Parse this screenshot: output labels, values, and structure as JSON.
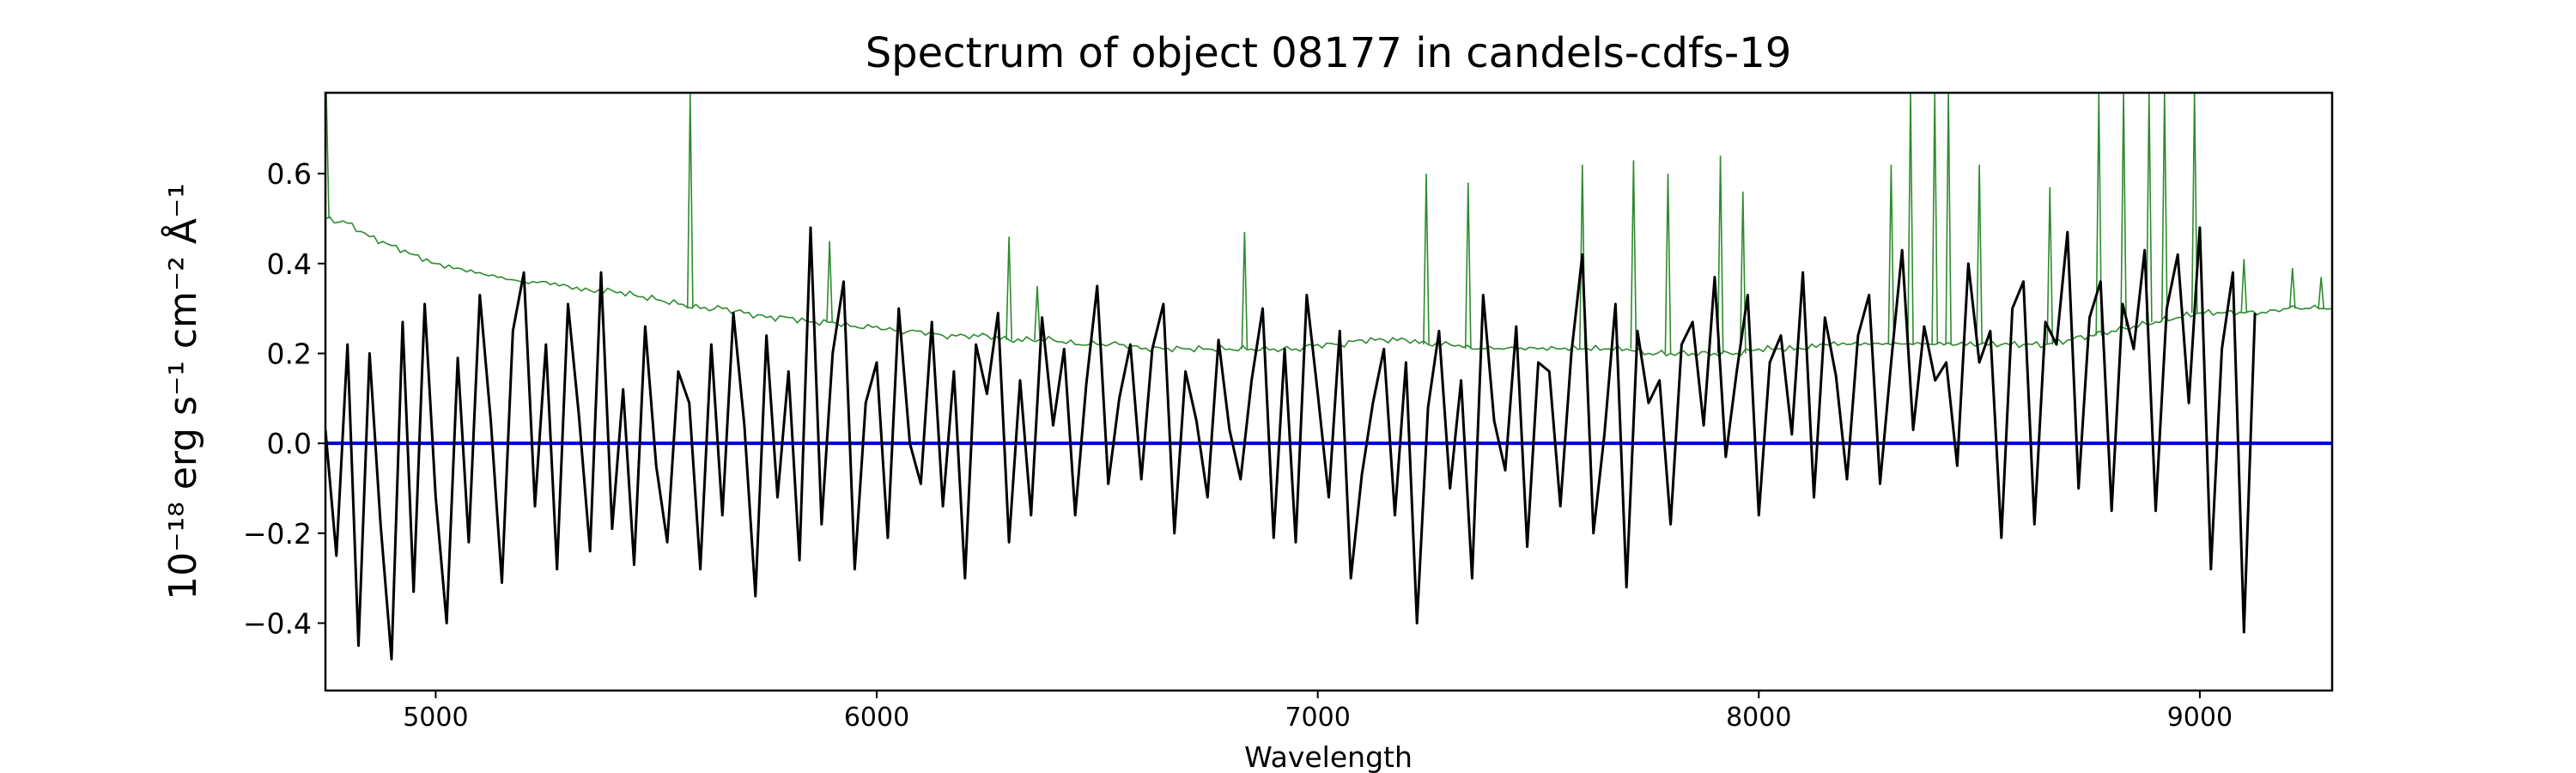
{
  "chart_data": {
    "type": "line",
    "title": "Spectrum of object 08177 in candels-cdfs-19",
    "xlabel": "Wavelength",
    "ylabel": "10⁻¹⁸ erg s⁻¹ cm⁻² Å⁻¹",
    "xlim": [
      4750,
      9300
    ],
    "ylim": [
      -0.55,
      0.78
    ],
    "x_ticks": [
      5000,
      6000,
      7000,
      8000,
      9000
    ],
    "x_tick_labels": [
      "5000",
      "6000",
      "7000",
      "8000",
      "9000"
    ],
    "y_ticks": [
      -0.4,
      -0.2,
      0.0,
      0.2,
      0.4,
      0.6
    ],
    "y_tick_labels": [
      "−0.4",
      "−0.2",
      "0.0",
      "0.2",
      "0.4",
      "0.6"
    ],
    "grid": false,
    "series": [
      {
        "role": "sky-noise",
        "color": "#2e8b2e",
        "start": 4750,
        "step": 50,
        "values": [
          0.5,
          0.49,
          0.46,
          0.44,
          0.42,
          0.4,
          0.39,
          0.38,
          0.37,
          0.36,
          0.36,
          0.35,
          0.34,
          0.34,
          0.33,
          0.32,
          0.31,
          0.3,
          0.3,
          0.29,
          0.28,
          0.28,
          0.27,
          0.27,
          0.26,
          0.26,
          0.25,
          0.25,
          0.24,
          0.24,
          0.24,
          0.23,
          0.23,
          0.23,
          0.22,
          0.22,
          0.22,
          0.21,
          0.21,
          0.21,
          0.21,
          0.21,
          0.21,
          0.21,
          0.21,
          0.22,
          0.22,
          0.23,
          0.23,
          0.23,
          0.22,
          0.22,
          0.21,
          0.21,
          0.21,
          0.21,
          0.21,
          0.21,
          0.21,
          0.21,
          0.2,
          0.2,
          0.2,
          0.2,
          0.2,
          0.21,
          0.21,
          0.21,
          0.22,
          0.22,
          0.22,
          0.22,
          0.22,
          0.22,
          0.22,
          0.22,
          0.22,
          0.22,
          0.22,
          0.23,
          0.24,
          0.25,
          0.26,
          0.27,
          0.28,
          0.29,
          0.29,
          0.29,
          0.29,
          0.3,
          0.3,
          0.3
        ],
        "peaks": [
          [
            4752,
            0.78
          ],
          [
            5577,
            0.78
          ],
          [
            5893,
            0.45
          ],
          [
            6300,
            0.46
          ],
          [
            6364,
            0.35
          ],
          [
            6834,
            0.47
          ],
          [
            7246,
            0.6
          ],
          [
            7341,
            0.58
          ],
          [
            7600,
            0.62
          ],
          [
            7716,
            0.63
          ],
          [
            7794,
            0.6
          ],
          [
            7913,
            0.64
          ],
          [
            7964,
            0.56
          ],
          [
            8300,
            0.62
          ],
          [
            8344,
            0.78
          ],
          [
            8399,
            0.78
          ],
          [
            8430,
            0.78
          ],
          [
            8500,
            0.62
          ],
          [
            8660,
            0.57
          ],
          [
            8771,
            0.78
          ],
          [
            8827,
            0.78
          ],
          [
            8885,
            0.78
          ],
          [
            8920,
            0.78
          ],
          [
            8988,
            0.78
          ],
          [
            9100,
            0.41
          ],
          [
            9210,
            0.39
          ],
          [
            9275,
            0.37
          ]
        ]
      },
      {
        "role": "flux",
        "color": "#000000",
        "start": 4750,
        "step": 25,
        "values": [
          0.03,
          -0.25,
          0.22,
          -0.45,
          0.2,
          -0.18,
          -0.48,
          0.27,
          -0.33,
          0.31,
          -0.12,
          -0.4,
          0.19,
          -0.22,
          0.33,
          0.05,
          -0.31,
          0.25,
          0.38,
          -0.14,
          0.22,
          -0.28,
          0.31,
          0.06,
          -0.24,
          0.38,
          -0.19,
          0.12,
          -0.27,
          0.26,
          -0.05,
          -0.22,
          0.16,
          0.09,
          -0.28,
          0.22,
          -0.16,
          0.29,
          0.04,
          -0.34,
          0.24,
          -0.12,
          0.16,
          -0.26,
          0.48,
          -0.18,
          0.2,
          0.36,
          -0.28,
          0.09,
          0.18,
          -0.21,
          0.3,
          0.0,
          -0.09,
          0.27,
          -0.14,
          0.16,
          -0.3,
          0.22,
          0.11,
          0.29,
          -0.22,
          0.14,
          -0.16,
          0.28,
          0.04,
          0.21,
          -0.16,
          0.13,
          0.35,
          -0.09,
          0.1,
          0.22,
          -0.08,
          0.21,
          0.31,
          -0.2,
          0.16,
          0.05,
          -0.12,
          0.23,
          0.03,
          -0.08,
          0.14,
          0.3,
          -0.21,
          0.21,
          -0.22,
          0.33,
          0.11,
          -0.12,
          0.25,
          -0.3,
          -0.07,
          0.09,
          0.21,
          -0.16,
          0.18,
          -0.4,
          0.08,
          0.25,
          -0.1,
          0.14,
          -0.3,
          0.33,
          0.05,
          -0.06,
          0.26,
          -0.23,
          0.18,
          0.16,
          -0.14,
          0.2,
          0.42,
          -0.2,
          0.02,
          0.31,
          -0.32,
          0.25,
          0.09,
          0.14,
          -0.18,
          0.22,
          0.27,
          0.04,
          0.37,
          -0.03,
          0.16,
          0.33,
          -0.16,
          0.18,
          0.24,
          0.02,
          0.38,
          -0.12,
          0.28,
          0.15,
          -0.08,
          0.24,
          0.33,
          -0.09,
          0.18,
          0.43,
          0.03,
          0.26,
          0.14,
          0.18,
          -0.05,
          0.4,
          0.18,
          0.25,
          -0.21,
          0.3,
          0.36,
          -0.18,
          0.27,
          0.22,
          0.47,
          -0.1,
          0.28,
          0.36,
          -0.15,
          0.31,
          0.21,
          0.43,
          -0.15,
          0.3,
          0.42,
          0.09,
          0.48,
          -0.28,
          0.21,
          0.38,
          -0.42,
          0.29
        ]
      }
    ],
    "reference_line": {
      "y": 0.0,
      "color": "#0000cc"
    }
  }
}
